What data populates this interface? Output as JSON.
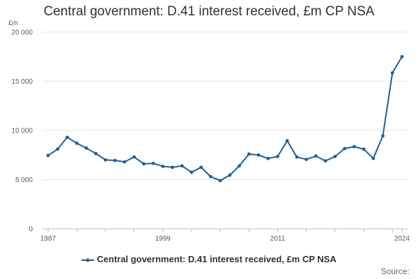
{
  "page": {
    "title": "Central government: D.41 interest received, £m CP NSA",
    "source_label": "Source:"
  },
  "chart_data": {
    "type": "line",
    "title": "Central government: D.41 interest received, £m CP NSA",
    "unit_label": "£m",
    "xlabel": "",
    "ylabel": "",
    "xlim": [
      1987,
      2024
    ],
    "ylim": [
      0,
      20000
    ],
    "yticks": [
      0,
      5000,
      10000,
      15000,
      20000
    ],
    "ytick_labels": [
      "0",
      "5 000",
      "10 000",
      "15 000",
      "20 000"
    ],
    "xticks_labeled": [
      1987,
      1999,
      2011,
      2024
    ],
    "xticks_minor": [
      1987,
      1990,
      1993,
      1996,
      1999,
      2002,
      2005,
      2008,
      2011,
      2014,
      2017,
      2020,
      2023
    ],
    "grid": true,
    "legend": "bottom",
    "color": "#206095",
    "series": [
      {
        "name": "Central government: D.41 interest received, £m CP NSA",
        "x": [
          1987,
          1988,
          1989,
          1990,
          1991,
          1992,
          1993,
          1994,
          1995,
          1996,
          1997,
          1998,
          1999,
          2000,
          2001,
          2002,
          2003,
          2004,
          2005,
          2006,
          2007,
          2008,
          2009,
          2010,
          2011,
          2012,
          2013,
          2014,
          2015,
          2016,
          2017,
          2018,
          2019,
          2020,
          2021,
          2022,
          2023,
          2024
        ],
        "values": [
          7450,
          8100,
          9300,
          8700,
          8200,
          7650,
          7000,
          6950,
          6800,
          7300,
          6600,
          6650,
          6350,
          6250,
          6400,
          5750,
          6250,
          5300,
          4900,
          5450,
          6400,
          7600,
          7500,
          7150,
          7350,
          8950,
          7300,
          7050,
          7400,
          6900,
          7350,
          8150,
          8350,
          8100,
          7150,
          9450,
          15850,
          17500
        ]
      }
    ]
  }
}
